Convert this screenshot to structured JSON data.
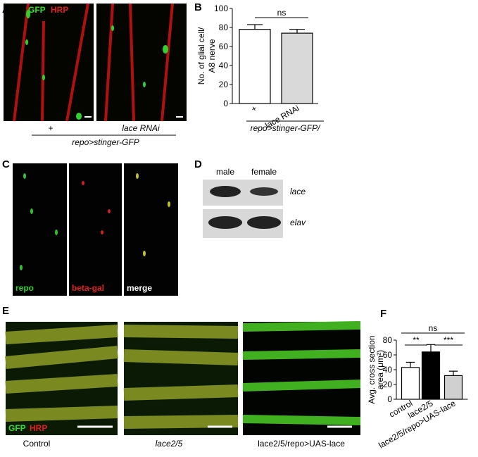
{
  "panels": {
    "A": {
      "letter": "A",
      "stains": [
        "GFP",
        "HRP"
      ],
      "conditions": [
        "+",
        "lace RNAi"
      ],
      "genotype": "repo>stinger-GFP"
    },
    "B": {
      "letter": "B"
    },
    "C": {
      "letter": "C",
      "channels": [
        "repo",
        "beta-gal",
        "merge"
      ]
    },
    "D": {
      "letter": "D",
      "columns": [
        "male",
        "female"
      ],
      "rows": [
        "lace",
        "elav"
      ]
    },
    "E": {
      "letter": "E",
      "stains": [
        "GFP",
        "HRP"
      ],
      "conditions": [
        "Control",
        "lace2/5",
        "lace2/5/repo>UAS-lace"
      ]
    },
    "F": {
      "letter": "F"
    }
  },
  "chart_data": [
    {
      "type": "bar",
      "ylabel": [
        "No. of glial cell/",
        "A8 nerve"
      ],
      "xlabel": "repo>stinger-GFP/",
      "categories": [
        "+",
        "lace RNAi"
      ],
      "values": [
        78,
        74
      ],
      "errors": [
        5,
        4
      ],
      "colors": [
        "#ffffff",
        "#d9d9d9"
      ],
      "ylim": [
        0,
        100
      ],
      "yticks": [
        0,
        20,
        40,
        60,
        80,
        100
      ],
      "annotations": [
        "ns"
      ]
    },
    {
      "type": "bar",
      "ylabel": [
        "Avg. cross section",
        "area (μm²)"
      ],
      "categories": [
        "control",
        "lace2/5",
        "lace2/5/repo>UAS-lace"
      ],
      "values": [
        43,
        64,
        32
      ],
      "errors": [
        7,
        10,
        6
      ],
      "colors": [
        "#ffffff",
        "#000000",
        "#d0d0d0"
      ],
      "ylim": [
        0,
        80
      ],
      "yticks": [
        0,
        20,
        40,
        60,
        80
      ],
      "annotations": [
        "**",
        "***",
        "ns"
      ]
    }
  ]
}
